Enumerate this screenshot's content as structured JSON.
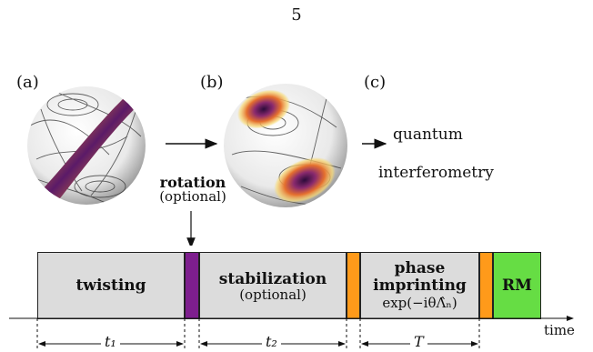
{
  "page_number": "5",
  "panels": {
    "a": "(a)",
    "b": "(b)",
    "c": "(c)"
  },
  "qi_line1": "quantum",
  "qi_line2": "interferometry",
  "rotation": {
    "title": "rotation",
    "note": "(optional)"
  },
  "timeline": {
    "twisting": "twisting",
    "stabilization": "stabilization",
    "stabilization_note": "(optional)",
    "phase_line1": "phase",
    "phase_line2": "imprinting",
    "formula": "exp(−iθΛ̂ₙ)",
    "rm": "RM",
    "time": "time",
    "t1": "t₁",
    "t2": "t₂",
    "T": "T"
  },
  "colors": {
    "purple": "#7e1e8e",
    "orange": "#ff9a1a",
    "green": "#66dd44",
    "gray": "#dcdcdc"
  }
}
